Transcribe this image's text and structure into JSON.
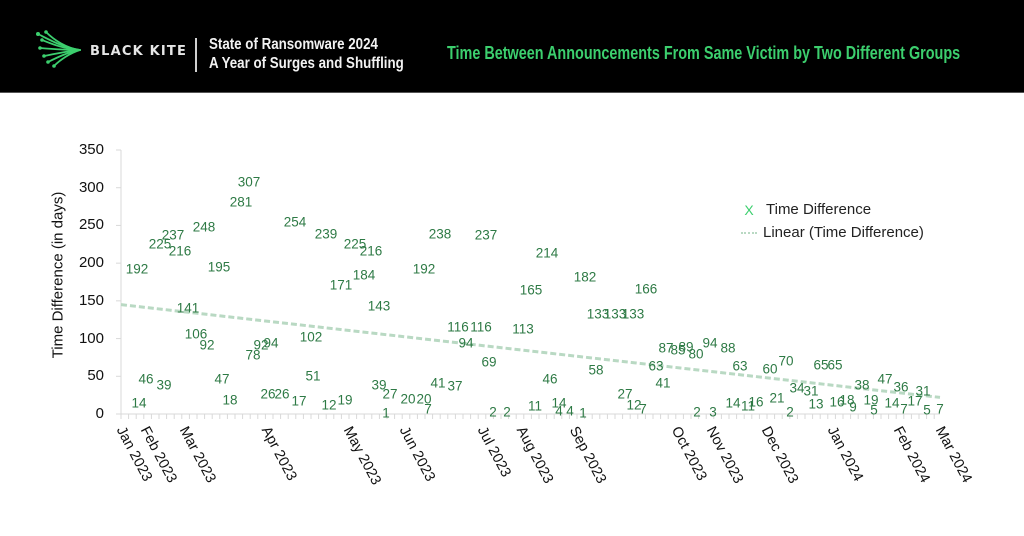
{
  "header": {
    "brand": "BLACK KITE",
    "report_title_line1": "State of Ransomware 2024",
    "report_title_line2": "A Year of Surges and Shuffling",
    "chart_title": "Time Between Announcements From Same Victim by Two Different Groups",
    "accent_color": "#3ccf6e",
    "logo_icon": "kite-logo-icon"
  },
  "legend": {
    "series_label": "Time Difference",
    "series_marker": "X",
    "trend_label": "Linear (Time Difference)"
  },
  "y_axis": {
    "title": "Time Difference (in days)",
    "ticks": [
      "350",
      "300",
      "250",
      "200",
      "150",
      "100",
      "50",
      "0"
    ]
  },
  "x_axis": {
    "ticks": [
      "Jan 2023",
      "Feb 2023",
      "Mar 2023",
      "Apr 2023",
      "May 2023",
      "Jun 2023",
      "Jul 2023",
      "Aug 2023",
      "Sep 2023",
      "Oct 2023",
      "Nov 2023",
      "Dec 2023",
      "Jan 2024",
      "Feb 2024",
      "Mar 2024"
    ]
  },
  "chart_data": {
    "type": "scatter",
    "title": "Time Between Announcements From Same Victim by Two Different Groups",
    "xlabel": "",
    "ylabel": "Time Difference (in days)",
    "ylim": [
      0,
      350
    ],
    "yticks": [
      0,
      50,
      100,
      150,
      200,
      250,
      300,
      350
    ],
    "xlim": [
      "Jan 2023",
      "Mar 2024"
    ],
    "grid": false,
    "legend_position": "right",
    "series": [
      {
        "name": "Time Difference",
        "marker": "x",
        "color": "#3ccf6e",
        "data_labels_color": "#2e7a45",
        "points": [
          {
            "x": 137,
            "v": 192
          },
          {
            "x": 139,
            "v": 14
          },
          {
            "x": 146,
            "v": 46
          },
          {
            "x": 160,
            "v": 225
          },
          {
            "x": 164,
            "v": 39
          },
          {
            "x": 173,
            "v": 237
          },
          {
            "x": 180,
            "v": 216
          },
          {
            "x": 188,
            "v": 141
          },
          {
            "x": 196,
            "v": 106
          },
          {
            "x": 204,
            "v": 248
          },
          {
            "x": 207,
            "v": 92
          },
          {
            "x": 219,
            "v": 195
          },
          {
            "x": 222,
            "v": 47
          },
          {
            "x": 230,
            "v": 18
          },
          {
            "x": 241,
            "v": 281
          },
          {
            "x": 249,
            "v": 307
          },
          {
            "x": 253,
            "v": 78
          },
          {
            "x": 261,
            "v": 92
          },
          {
            "x": 271,
            "v": 94
          },
          {
            "x": 268,
            "v": 26
          },
          {
            "x": 282,
            "v": 26
          },
          {
            "x": 295,
            "v": 254
          },
          {
            "x": 299,
            "v": 17
          },
          {
            "x": 311,
            "v": 102
          },
          {
            "x": 313,
            "v": 51
          },
          {
            "x": 326,
            "v": 239
          },
          {
            "x": 329,
            "v": 12
          },
          {
            "x": 345,
            "v": 19
          },
          {
            "x": 341,
            "v": 171
          },
          {
            "x": 355,
            "v": 225
          },
          {
            "x": 364,
            "v": 184
          },
          {
            "x": 371,
            "v": 216
          },
          {
            "x": 379,
            "v": 143
          },
          {
            "x": 379,
            "v": 39
          },
          {
            "x": 386,
            "v": 1
          },
          {
            "x": 390,
            "v": 27
          },
          {
            "x": 408,
            "v": 20
          },
          {
            "x": 424,
            "v": 192
          },
          {
            "x": 424,
            "v": 20
          },
          {
            "x": 428,
            "v": 7
          },
          {
            "x": 438,
            "v": 41
          },
          {
            "x": 440,
            "v": 238
          },
          {
            "x": 455,
            "v": 37
          },
          {
            "x": 458,
            "v": 116
          },
          {
            "x": 466,
            "v": 94
          },
          {
            "x": 481,
            "v": 116
          },
          {
            "x": 486,
            "v": 237
          },
          {
            "x": 489,
            "v": 69
          },
          {
            "x": 493,
            "v": 2
          },
          {
            "x": 507,
            "v": 2
          },
          {
            "x": 523,
            "v": 113
          },
          {
            "x": 531,
            "v": 165
          },
          {
            "x": 535,
            "v": 11
          },
          {
            "x": 547,
            "v": 214
          },
          {
            "x": 550,
            "v": 46
          },
          {
            "x": 559,
            "v": 14
          },
          {
            "x": 559,
            "v": 4
          },
          {
            "x": 570,
            "v": 4
          },
          {
            "x": 583,
            "v": 1
          },
          {
            "x": 585,
            "v": 182
          },
          {
            "x": 596,
            "v": 58
          },
          {
            "x": 598,
            "v": 133
          },
          {
            "x": 615,
            "v": 133
          },
          {
            "x": 625,
            "v": 27
          },
          {
            "x": 633,
            "v": 133
          },
          {
            "x": 634,
            "v": 12
          },
          {
            "x": 643,
            "v": 7
          },
          {
            "x": 646,
            "v": 166
          },
          {
            "x": 656,
            "v": 63
          },
          {
            "x": 663,
            "v": 41
          },
          {
            "x": 666,
            "v": 87
          },
          {
            "x": 678,
            "v": 85
          },
          {
            "x": 686,
            "v": 89
          },
          {
            "x": 696,
            "v": 80
          },
          {
            "x": 697,
            "v": 2
          },
          {
            "x": 710,
            "v": 94
          },
          {
            "x": 713,
            "v": 3
          },
          {
            "x": 728,
            "v": 88
          },
          {
            "x": 740,
            "v": 63
          },
          {
            "x": 733,
            "v": 14
          },
          {
            "x": 748,
            "v": 11
          },
          {
            "x": 756,
            "v": 16
          },
          {
            "x": 770,
            "v": 60
          },
          {
            "x": 777,
            "v": 21
          },
          {
            "x": 786,
            "v": 70
          },
          {
            "x": 790,
            "v": 2
          },
          {
            "x": 797,
            "v": 34
          },
          {
            "x": 811,
            "v": 31
          },
          {
            "x": 816,
            "v": 13
          },
          {
            "x": 821,
            "v": 65
          },
          {
            "x": 837,
            "v": 16
          },
          {
            "x": 835,
            "v": 65
          },
          {
            "x": 847,
            "v": 18
          },
          {
            "x": 853,
            "v": 9
          },
          {
            "x": 862,
            "v": 38
          },
          {
            "x": 871,
            "v": 19
          },
          {
            "x": 874,
            "v": 5
          },
          {
            "x": 885,
            "v": 47
          },
          {
            "x": 892,
            "v": 14
          },
          {
            "x": 901,
            "v": 36
          },
          {
            "x": 904,
            "v": 7
          },
          {
            "x": 915,
            "v": 17
          },
          {
            "x": 923,
            "v": 31
          },
          {
            "x": 927,
            "v": 5
          },
          {
            "x": 940,
            "v": 7
          }
        ]
      },
      {
        "name": "Linear (Time Difference)",
        "type": "trendline",
        "color": "#b9d9c3",
        "start": {
          "x": "Jan 2023",
          "v": 145
        },
        "end": {
          "x": "Mar 2024",
          "v": 22
        }
      }
    ]
  }
}
